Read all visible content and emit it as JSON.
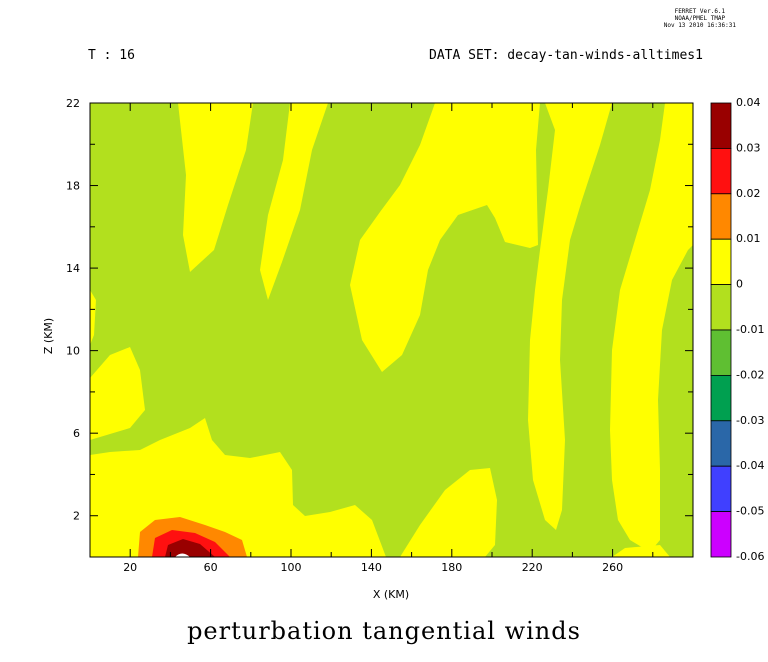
{
  "header": {
    "time_label": "T : 16",
    "dataset_label": "DATA SET: decay-tan-winds-alltimes1",
    "stamp": [
      "FERRET Ver.6.1",
      "NOAA/PMEL TMAP",
      "Nov 13 2010 16:36:31"
    ]
  },
  "chart_data": {
    "type": "heatmap",
    "title": "perturbation tangential winds",
    "xlabel": "X (KM)",
    "ylabel": "Z (KM)",
    "xlim": [
      0,
      300
    ],
    "ylim": [
      0,
      22
    ],
    "x_ticks": [
      "20",
      "60",
      "100",
      "140",
      "180",
      "220",
      "260"
    ],
    "y_ticks": [
      "2",
      "6",
      "10",
      "14",
      "18",
      "22"
    ],
    "colorbar": {
      "levels": [
        "0.04",
        "0.03",
        "0.02",
        "0.01",
        "0",
        "-0.01",
        "-0.02",
        "-0.03",
        "-0.04",
        "-0.05",
        "-0.06"
      ],
      "colors": [
        "#990000",
        "#ff1010",
        "#ff8800",
        "#ffff00",
        "#b2e01e",
        "#5fbf32",
        "#00a050",
        "#2a67a8",
        "#4040ff",
        "#cc00ff"
      ]
    }
  }
}
